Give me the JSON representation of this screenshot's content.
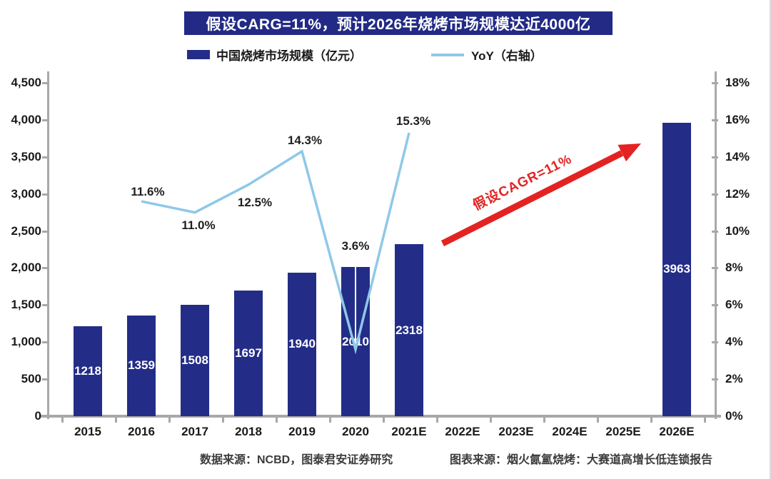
{
  "title": {
    "text": "假设CARG=11%，预计2026年烧烤市场规模达近4000亿",
    "bg_color": "#222a85",
    "text_color": "#ffffff"
  },
  "legend": {
    "items": [
      {
        "label": "中国烧烤市场规模（亿元）",
        "swatch": "bar",
        "color": "#232d87"
      },
      {
        "label": "YoY（右轴）",
        "swatch": "line",
        "color": "#8fc8e8"
      }
    ]
  },
  "annotation": {
    "text": "假设CAGR=11%",
    "color": "#e32322"
  },
  "footer": {
    "data_source": "数据来源：NCBD，图泰君安证券研究",
    "chart_source": "图表来源：烟火氤氲烧烤：大赛道高增长低连锁报告"
  },
  "colors": {
    "bar": "#232d87",
    "line": "#8fc8e8",
    "arrow": "#e32322",
    "axis": "#a8a8a8"
  },
  "chart_data": {
    "type": "bar",
    "subtype": "bar+line combo",
    "categories": [
      "2015",
      "2016",
      "2017",
      "2018",
      "2019",
      "2020",
      "2021E",
      "2022E",
      "2023E",
      "2024E",
      "2025E",
      "2026E"
    ],
    "series": [
      {
        "name": "中国烧烤市场规模（亿元）",
        "type": "bar",
        "axis": "left",
        "color": "#232d87",
        "values": [
          1218,
          1359,
          1508,
          1697,
          1940,
          2010,
          2318,
          null,
          null,
          null,
          null,
          3963
        ],
        "labels": [
          "1218",
          "1359",
          "1508",
          "1697",
          "1940",
          "2010",
          "2318",
          null,
          null,
          null,
          null,
          "3963"
        ]
      },
      {
        "name": "YoY（右轴）",
        "type": "line",
        "axis": "right",
        "color": "#8fc8e8",
        "values": [
          null,
          11.6,
          11.0,
          12.5,
          14.3,
          3.6,
          15.3,
          null,
          null,
          null,
          null,
          null
        ],
        "labels": [
          null,
          "11.6%",
          "11.0%",
          "12.5%",
          "14.3%",
          "3.6%",
          "15.3%",
          null,
          null,
          null,
          null,
          null
        ]
      }
    ],
    "left_axis": {
      "min": 0,
      "max": 4500,
      "tick_labels": [
        "4,500",
        "4,000",
        "3,500",
        "3,000",
        "2,500",
        "2,000",
        "1,500",
        "1,000",
        "500",
        "0"
      ]
    },
    "right_axis": {
      "min": 0,
      "max": 18,
      "tick_labels": [
        "18%",
        "16%",
        "14%",
        "12%",
        "10%",
        "8%",
        "6%",
        "4%",
        "2%",
        "0%"
      ]
    },
    "grid": false,
    "legend_position": "top"
  }
}
